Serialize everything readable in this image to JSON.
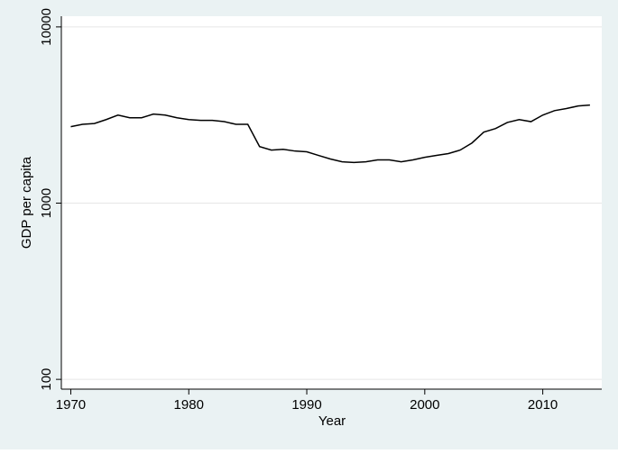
{
  "chart_data": {
    "type": "line",
    "xlabel": "Year",
    "ylabel": "GDP per capita",
    "log_y": true,
    "grid": true,
    "background": "#eaf2f3",
    "x": [
      1970,
      1971,
      1972,
      1973,
      1974,
      1975,
      1976,
      1977,
      1978,
      1979,
      1980,
      1981,
      1982,
      1983,
      1984,
      1985,
      1986,
      1987,
      1988,
      1989,
      1990,
      1991,
      1992,
      1993,
      1994,
      1995,
      1996,
      1997,
      1998,
      1999,
      2000,
      2001,
      2002,
      2003,
      2004,
      2005,
      2006,
      2007,
      2008,
      2009,
      2010,
      2011,
      2012,
      2013,
      2014
    ],
    "series": [
      {
        "name": "GDP per capita",
        "color": "#000000",
        "values": [
          2716,
          2800,
          2830,
          2980,
          3160,
          3050,
          3050,
          3200,
          3160,
          3050,
          2980,
          2950,
          2950,
          2900,
          2800,
          2800,
          2094,
          2000,
          2020,
          1975,
          1955,
          1865,
          1780,
          1717,
          1700,
          1717,
          1760,
          1760,
          1717,
          1760,
          1820,
          1865,
          1910,
          2000,
          2195,
          2530,
          2650,
          2870,
          2980,
          2900,
          3160,
          3350,
          3440,
          3560,
          3600
        ]
      }
    ],
    "xlim": [
      1969.2,
      2015
    ],
    "xticks": [
      1970,
      1980,
      1990,
      2000,
      2010
    ],
    "ylim": [
      88,
      11500
    ],
    "yticks": [
      100,
      1000,
      10000
    ]
  }
}
